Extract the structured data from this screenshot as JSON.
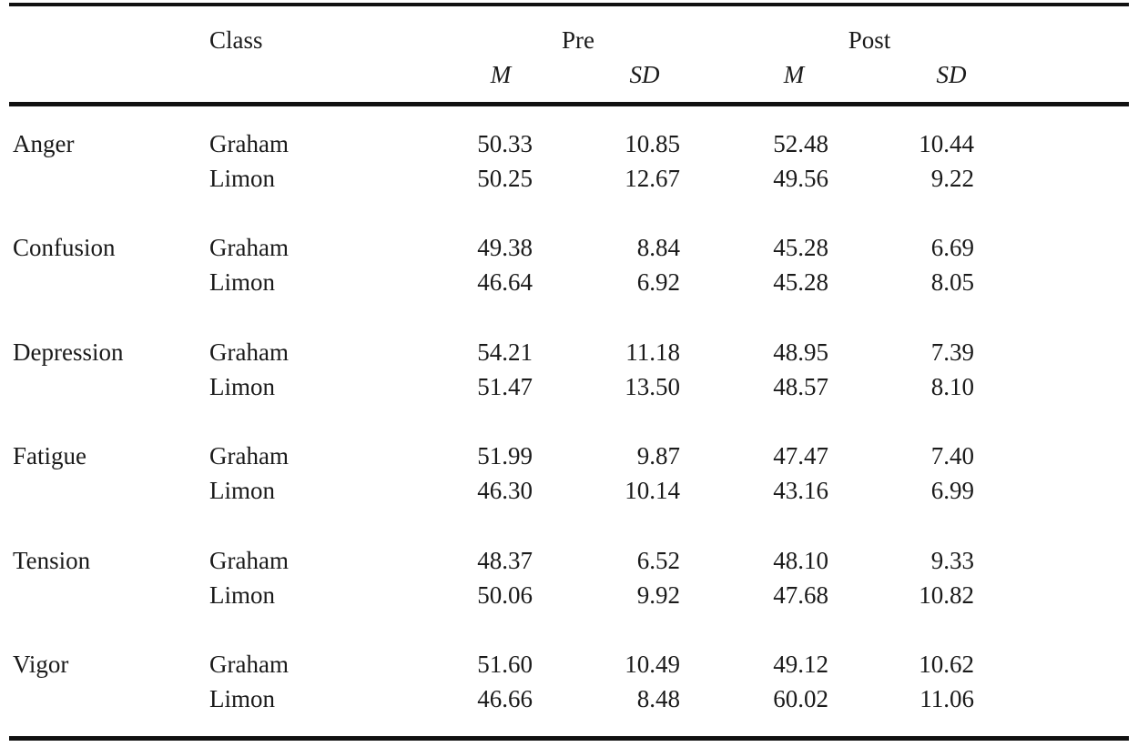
{
  "header": {
    "class_label": "Class",
    "pre_label": "Pre",
    "post_label": "Post",
    "pre_m": "M",
    "pre_sd": "SD",
    "post_m": "M",
    "post_sd": "SD"
  },
  "groups": [
    {
      "label": "Anger",
      "rows": [
        {
          "class": "Graham",
          "pre_m": "50.33",
          "pre_sd": "10.85",
          "post_m": "52.48",
          "post_sd": "10.44"
        },
        {
          "class": "Limon",
          "pre_m": "50.25",
          "pre_sd": "12.67",
          "post_m": "49.56",
          "post_sd": "9.22"
        }
      ]
    },
    {
      "label": "Confusion",
      "rows": [
        {
          "class": "Graham",
          "pre_m": "49.38",
          "pre_sd": "8.84",
          "post_m": "45.28",
          "post_sd": "6.69"
        },
        {
          "class": "Limon",
          "pre_m": "46.64",
          "pre_sd": "6.92",
          "post_m": "45.28",
          "post_sd": "8.05"
        }
      ]
    },
    {
      "label": "Depression",
      "rows": [
        {
          "class": "Graham",
          "pre_m": "54.21",
          "pre_sd": "11.18",
          "post_m": "48.95",
          "post_sd": "7.39"
        },
        {
          "class": "Limon",
          "pre_m": "51.47",
          "pre_sd": "13.50",
          "post_m": "48.57",
          "post_sd": "8.10"
        }
      ]
    },
    {
      "label": "Fatigue",
      "rows": [
        {
          "class": "Graham",
          "pre_m": "51.99",
          "pre_sd": "9.87",
          "post_m": "47.47",
          "post_sd": "7.40"
        },
        {
          "class": "Limon",
          "pre_m": "46.30",
          "pre_sd": "10.14",
          "post_m": "43.16",
          "post_sd": "6.99"
        }
      ]
    },
    {
      "label": "Tension",
      "rows": [
        {
          "class": "Graham",
          "pre_m": "48.37",
          "pre_sd": "6.52",
          "post_m": "48.10",
          "post_sd": "9.33"
        },
        {
          "class": "Limon",
          "pre_m": "50.06",
          "pre_sd": "9.92",
          "post_m": "47.68",
          "post_sd": "10.82"
        }
      ]
    },
    {
      "label": "Vigor",
      "rows": [
        {
          "class": "Graham",
          "pre_m": "51.60",
          "pre_sd": "10.49",
          "post_m": "49.12",
          "post_sd": "10.62"
        },
        {
          "class": "Limon",
          "pre_m": "46.66",
          "pre_sd": "8.48",
          "post_m": "60.02",
          "post_sd": "11.06"
        }
      ]
    }
  ]
}
